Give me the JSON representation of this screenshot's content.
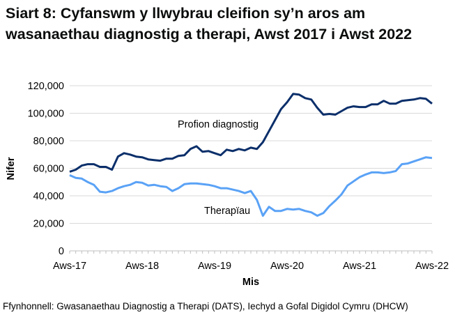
{
  "title": "Siart 8: Cyfanswm y llwybrau cleifion sy’n aros am wasanaethau diagnostig a therapi, Awst 2017 i Awst 2022",
  "source": "Ffynhonnell: Gwasanaethau Diagnostig a Therapi (DATS), Iechyd a Gofal Digidol Cymru (DHCW)",
  "chart_data": {
    "type": "line",
    "title": "Siart 8: Cyfanswm y llwybrau cleifion sy’n aros am wasanaethau diagnostig a therapi, Awst 2017 i Awst 2022",
    "xlabel": "Mis",
    "ylabel": "Nifer",
    "ylim": [
      0,
      120000
    ],
    "yticks": [
      "0",
      "20,000",
      "40,000",
      "60,000",
      "80,000",
      "100,000",
      "120,000"
    ],
    "xticks": [
      "Aws-17",
      "Aws-18",
      "Aws-19",
      "Aws-20",
      "Aws-21",
      "Aws-22"
    ],
    "grid": true,
    "x_start": "Aug 2017",
    "x_end": "Aug 2022",
    "series": [
      {
        "name": "Profion diagnostig",
        "color": "#0b2f6a",
        "values": [
          57500,
          59000,
          62000,
          63000,
          63000,
          61000,
          61000,
          59000,
          68500,
          71000,
          70000,
          68500,
          68000,
          66500,
          66000,
          65500,
          67000,
          67000,
          69000,
          69500,
          74000,
          76000,
          72000,
          72500,
          71000,
          69500,
          73500,
          72500,
          74000,
          73000,
          75000,
          74000,
          79000,
          87000,
          95000,
          103000,
          108000,
          114000,
          113500,
          111000,
          110000,
          104000,
          99000,
          99500,
          99000,
          101500,
          104000,
          105000,
          104500,
          104500,
          106500,
          106500,
          109000,
          107000,
          107000,
          109000,
          109500,
          110000,
          111000,
          110500,
          107000
        ]
      },
      {
        "name": "Therapïau",
        "color": "#5aa2f6",
        "values": [
          55000,
          53000,
          52500,
          50000,
          48000,
          43000,
          42500,
          43500,
          45500,
          47000,
          48000,
          50000,
          49500,
          47500,
          48000,
          47000,
          46500,
          43500,
          45500,
          48500,
          49000,
          49000,
          48500,
          48000,
          47000,
          45500,
          45500,
          44500,
          43500,
          42000,
          43500,
          37000,
          25500,
          32000,
          29000,
          29000,
          30500,
          30000,
          30500,
          29000,
          28000,
          25500,
          27500,
          32500,
          36500,
          41000,
          47500,
          50500,
          53500,
          55500,
          57000,
          57000,
          56500,
          57000,
          58000,
          63000,
          63500,
          65000,
          66500,
          68000,
          67500
        ]
      }
    ]
  }
}
